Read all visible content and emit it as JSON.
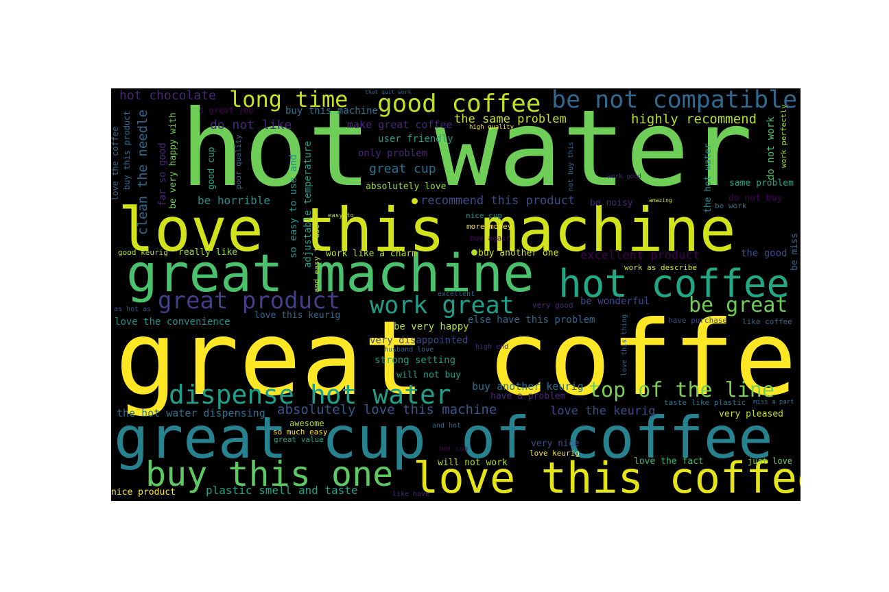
{
  "colors": {
    "background": "#000000",
    "page": "#ffffff",
    "palette": [
      "#440154",
      "#482878",
      "#3e4a89",
      "#31688e",
      "#26828e",
      "#1f9e89",
      "#35b779",
      "#6ece58",
      "#b5de2b",
      "#fde725"
    ]
  },
  "words": [
    "hot water",
    "great coffee",
    "love this machine",
    "great machine",
    "great cup of coffee",
    "hot coffee",
    "love this coffee",
    "buy this one",
    "dispense hot water",
    "top of the line",
    "good coffee",
    "be not compatible",
    "long time",
    "great product",
    "work great",
    "be great",
    "absolutely love this machine",
    "highly recommend",
    "hot chocolate",
    "clean the needle",
    "do not like",
    "the same problem",
    "make great coffee",
    "excellent product",
    "recommend this product",
    "buy another keurig",
    "love the keurig",
    "plastic smell and taste",
    "the hot water dispensing",
    "buy this machine",
    "great cup",
    "be horrible",
    "very disappointed",
    "strong setting",
    "be wonderful",
    "else have this problem",
    "be very happy",
    "love the convenience",
    "love this keurig",
    "user friendly",
    "only problem",
    "absolutely love",
    "same problem",
    "do not work",
    "the hot water",
    "do not buy",
    "be noisy",
    "be work",
    "be miss",
    "the good",
    "very pleased",
    "love the fact",
    "just love",
    "very nice",
    "love keurig",
    "will not work",
    "nice product",
    "will not buy",
    "have a problem",
    "work like a charm",
    "buy another one",
    "really like",
    "good keurig",
    "far so good",
    "be very happy with",
    "good cup",
    "poor quality",
    "so easy to use and",
    "adjustable temperature",
    "and easy to use",
    "love the coffee",
    "buy this product",
    "a great job",
    "that quit work",
    "high quality",
    "nice cup",
    "more money",
    "buy again",
    "work as describe",
    "amazing",
    "work good",
    "not buy this",
    "work perfectly",
    "love this thing",
    "very good",
    "have purchase",
    "like coffee",
    "taste like plastic",
    "miss a part",
    "excellent",
    "high end",
    "husband love",
    "awesome",
    "so much easy",
    "great value",
    "and hot",
    "hot cup",
    "like have",
    "as hot as",
    "easy to"
  ]
}
